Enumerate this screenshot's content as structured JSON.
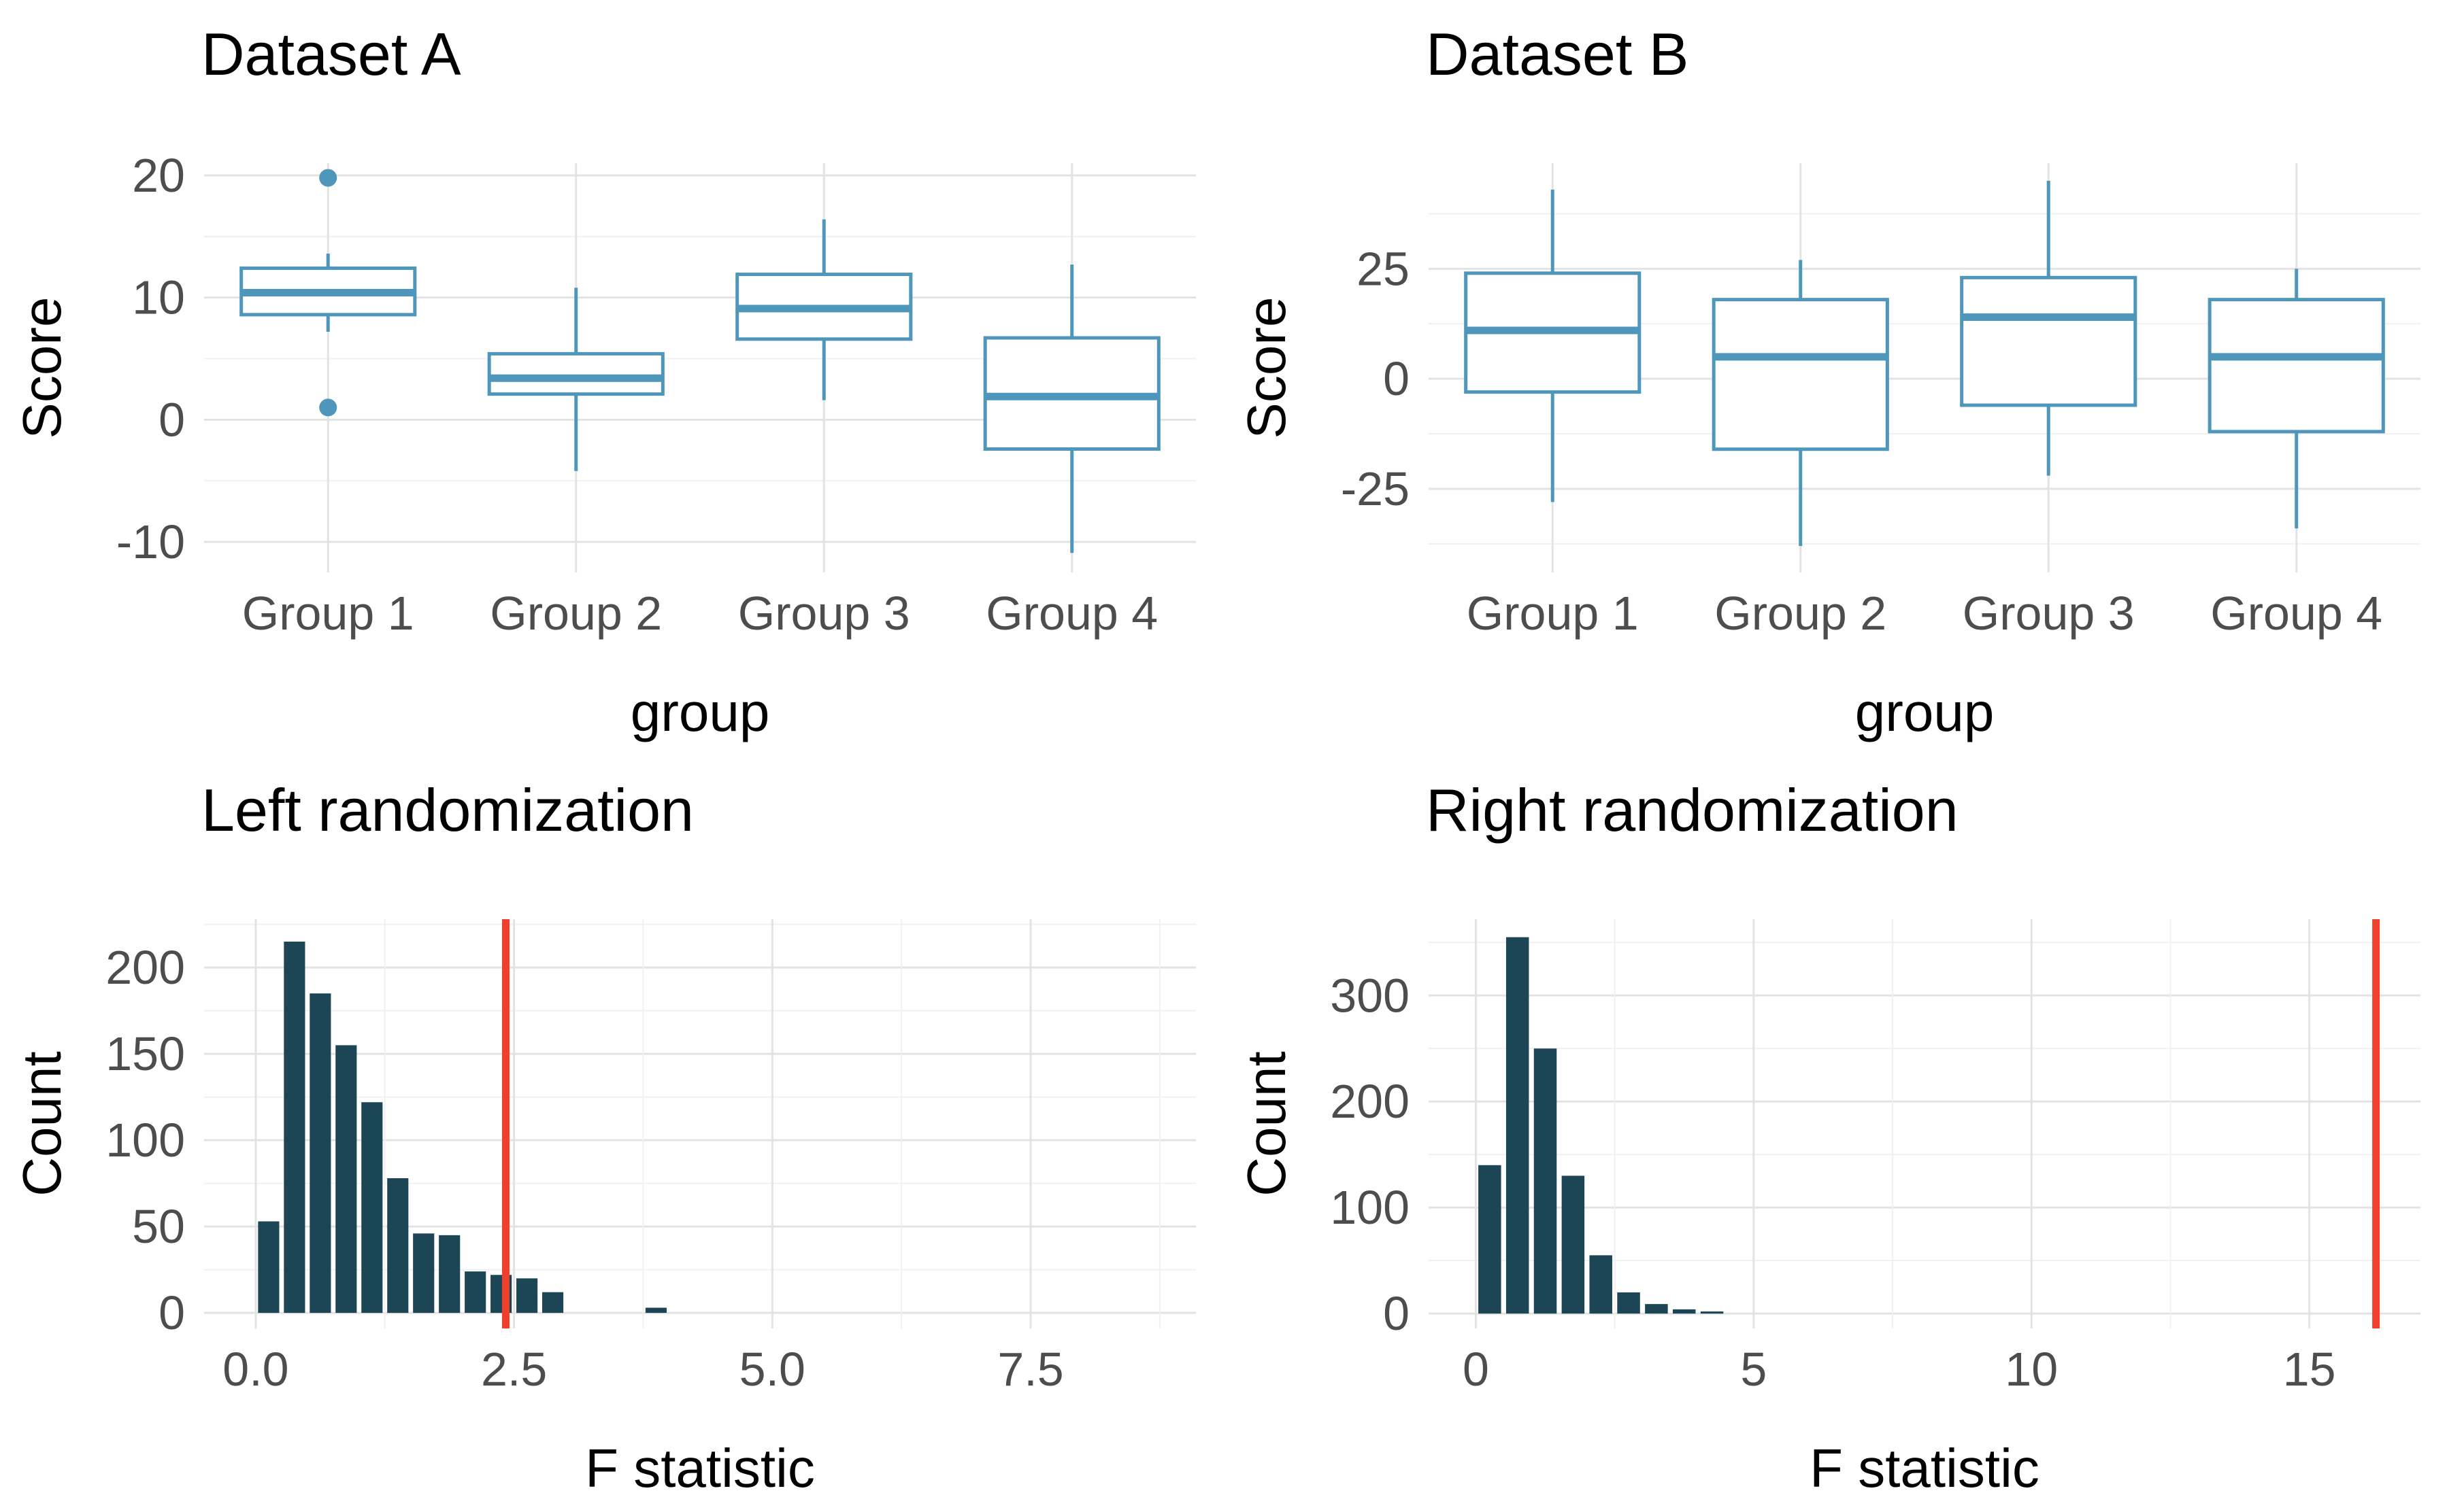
{
  "figure": {
    "background": "#FFFFFF"
  },
  "colors": {
    "box_stroke": "#4E96BA",
    "box_fill": "#FFFFFF",
    "hist_fill": "#1C4656",
    "ref_line": "#EE402C",
    "grid_major": "#E3E3E3",
    "grid_minor": "#F1F1F1",
    "tick_label": "#4D4D4D",
    "axis_title": "#000000",
    "title": "#000000"
  },
  "chart_data": [
    {
      "id": "dataset-a",
      "type": "boxplot",
      "title": "Dataset A",
      "xlabel": "group",
      "ylabel": "Score",
      "legend": "none",
      "grid": true,
      "categories": [
        "Group 1",
        "Group 2",
        "Group 3",
        "Group 4"
      ],
      "ytick_values": [
        -10,
        0,
        10,
        20
      ],
      "ytick_labels": [
        "-10",
        "0",
        "10",
        "20"
      ],
      "ylim": [
        -12.5,
        21
      ],
      "boxes": [
        {
          "whisker_low": 7.2,
          "q1": 8.6,
          "median": 10.4,
          "q3": 12.4,
          "whisker_high": 13.6,
          "outliers": [
            19.8,
            1.0
          ]
        },
        {
          "whisker_low": -4.2,
          "q1": 2.1,
          "median": 3.4,
          "q3": 5.4,
          "whisker_high": 10.8,
          "outliers": []
        },
        {
          "whisker_low": 1.6,
          "q1": 6.6,
          "median": 9.1,
          "q3": 11.9,
          "whisker_high": 16.4,
          "outliers": []
        },
        {
          "whisker_low": -10.9,
          "q1": -2.4,
          "median": 1.9,
          "q3": 6.7,
          "whisker_high": 12.7,
          "outliers": []
        }
      ]
    },
    {
      "id": "dataset-b",
      "type": "boxplot",
      "title": "Dataset B",
      "xlabel": "group",
      "ylabel": "Score",
      "legend": "none",
      "grid": true,
      "categories": [
        "Group 1",
        "Group 2",
        "Group 3",
        "Group 4"
      ],
      "ytick_values": [
        -25,
        0,
        25
      ],
      "ytick_labels": [
        "-25",
        "0",
        "25"
      ],
      "ylim": [
        -44,
        49
      ],
      "boxes": [
        {
          "whisker_low": -28,
          "q1": -3,
          "median": 11,
          "q3": 24,
          "whisker_high": 43,
          "outliers": []
        },
        {
          "whisker_low": -38,
          "q1": -16,
          "median": 5,
          "q3": 18,
          "whisker_high": 27,
          "outliers": []
        },
        {
          "whisker_low": -22,
          "q1": -6,
          "median": 14,
          "q3": 23,
          "whisker_high": 45,
          "outliers": []
        },
        {
          "whisker_low": -34,
          "q1": -12,
          "median": 5,
          "q3": 18,
          "whisker_high": 25,
          "outliers": []
        }
      ]
    },
    {
      "id": "left-randomization",
      "type": "histogram",
      "title": "Left randomization",
      "xlabel": "F statistic",
      "ylabel": "Count",
      "legend": "none",
      "grid": true,
      "bin_start": 0.0,
      "bin_width": 0.25,
      "counts": [
        53,
        215,
        185,
        155,
        122,
        78,
        46,
        45,
        24,
        22,
        20,
        12,
        0,
        0,
        0,
        3
      ],
      "xtick_values": [
        0,
        2.5,
        5,
        7.5
      ],
      "xtick_labels": [
        "0.0",
        "2.5",
        "5.0",
        "7.5"
      ],
      "ytick_values": [
        0,
        50,
        100,
        150,
        200
      ],
      "ytick_labels": [
        "0",
        "50",
        "100",
        "150",
        "200"
      ],
      "xlim": [
        -0.5,
        9.1
      ],
      "ylim": [
        -9,
        228
      ],
      "ref_line_x": 2.42
    },
    {
      "id": "right-randomization",
      "type": "histogram",
      "title": "Right randomization",
      "xlabel": "F statistic",
      "ylabel": "Count",
      "legend": "none",
      "grid": true,
      "bin_start": 0.0,
      "bin_width": 0.5,
      "counts": [
        140,
        355,
        250,
        130,
        55,
        20,
        9,
        4,
        2
      ],
      "xtick_values": [
        0,
        5,
        10,
        15
      ],
      "xtick_labels": [
        "0",
        "5",
        "10",
        "15"
      ],
      "ytick_values": [
        0,
        100,
        200,
        300
      ],
      "ytick_labels": [
        "0",
        "100",
        "200",
        "300"
      ],
      "xlim": [
        -0.85,
        17.0
      ],
      "ylim": [
        -14,
        372
      ],
      "ref_line_x": 16.2
    }
  ]
}
